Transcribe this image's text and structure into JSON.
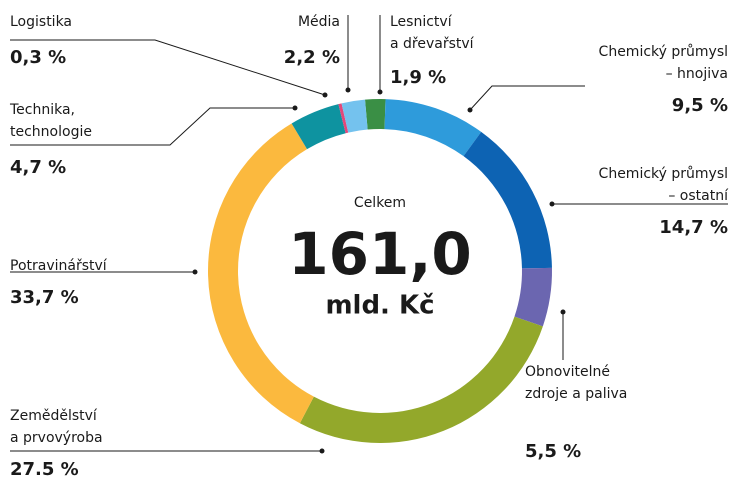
{
  "chart_data": {
    "type": "donut",
    "center_label": "Celkem",
    "total_label": "161,0",
    "total_unit": "mld. Kč",
    "categories": [
      [
        "Lesnictví",
        "a dřevařství"
      ],
      [
        "Chemický průmysl",
        "– hnojiva"
      ],
      [
        "Chemický průmysl",
        "– ostatní"
      ],
      [
        "Obnovitelné",
        "zdroje a paliva"
      ],
      [
        "Zemědělství",
        "a prvovýroba"
      ],
      [
        "Potravinářství"
      ],
      [
        "Technika,",
        "technologie"
      ],
      [
        "Logistika"
      ],
      [
        "Média"
      ]
    ],
    "values": [
      1.9,
      9.5,
      14.7,
      5.5,
      27.5,
      33.7,
      4.7,
      0.3,
      2.2
    ],
    "value_labels": [
      "1,9 %",
      "9,5 %",
      "14,7 %",
      "5,5 %",
      "27.5 %",
      "33,7 %",
      "4,7 %",
      "0,3 %",
      "2,2 %"
    ],
    "colors": [
      "#3a8f45",
      "#2e9bdb",
      "#0d63b3",
      "#6b66b0",
      "#93a82b",
      "#fbb93e",
      "#0e93a0",
      "#e3477a",
      "#74c2ee"
    ]
  }
}
